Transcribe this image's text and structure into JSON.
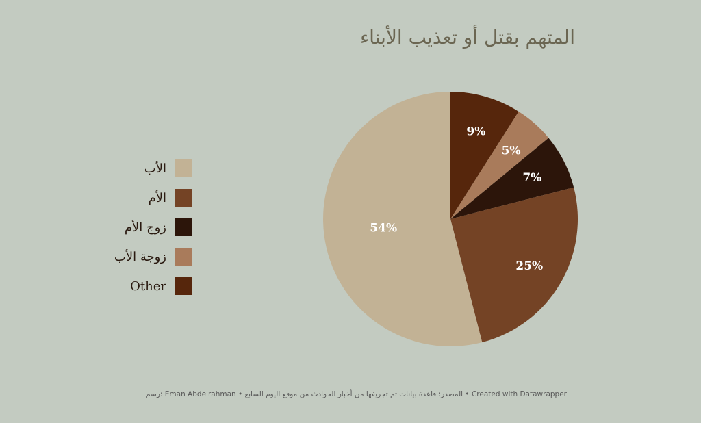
{
  "title": "المتهم بقتل أو تعذيب الأبناء",
  "footer": "رسم: Eman Abdelrahman • المصدر: قاعدة بيانات تم تجريفها من أخبار الحوادث من موقع اليوم السابع • Created with Datawrapper",
  "chart_data": {
    "type": "pie",
    "title": "المتهم بقتل أو تعذيب الأبناء",
    "start": "12 o'clock",
    "direction": "clockwise",
    "slices": [
      {
        "label": "Other",
        "value": 9,
        "display": "9%",
        "color": "#56260c"
      },
      {
        "label": "زوجة الأب",
        "value": 5,
        "display": "5%",
        "color": "#a97b5b"
      },
      {
        "label": "زوج الأم",
        "value": 7,
        "display": "7%",
        "color": "#2c150a"
      },
      {
        "label": "الأم",
        "value": 25,
        "display": "25%",
        "color": "#744325"
      },
      {
        "label": "الأب",
        "value": 54,
        "display": "54%",
        "color": "#c2b295"
      }
    ],
    "legend_order": [
      "الأب",
      "الأم",
      "زوج الأم",
      "زوجة الأب",
      "Other"
    ],
    "legend_position": "left"
  }
}
